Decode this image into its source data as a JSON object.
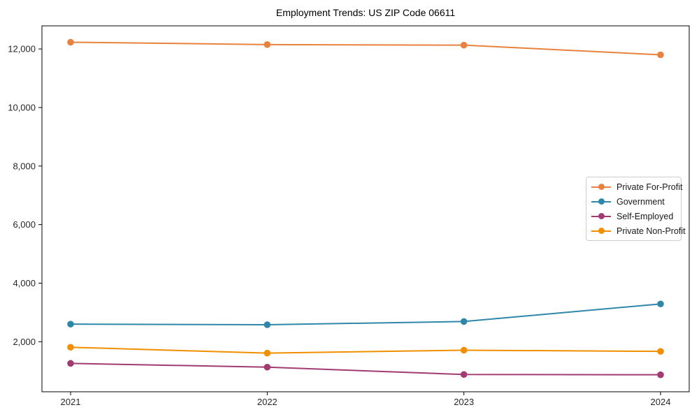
{
  "chart_data": {
    "type": "line",
    "title": "Employment Trends: US ZIP Code 06611",
    "categories": [
      "2021",
      "2022",
      "2023",
      "2024"
    ],
    "series": [
      {
        "name": "Private For-Profit",
        "color": "#E8823E",
        "values": [
          12230,
          12150,
          12130,
          11800
        ]
      },
      {
        "name": "Government",
        "color": "#2E87A9",
        "values": [
          2600,
          2580,
          2690,
          3290
        ]
      },
      {
        "name": "Self-Employed",
        "color": "#A23B72",
        "values": [
          1260,
          1130,
          880,
          870
        ]
      },
      {
        "name": "Private Non-Profit",
        "color": "#F18F01",
        "values": [
          1810,
          1610,
          1710,
          1670
        ]
      }
    ],
    "xlabel": "",
    "ylabel": "",
    "ylim": [
      290,
      12790
    ],
    "yticks": [
      2000,
      4000,
      6000,
      8000,
      10000,
      12000
    ],
    "ytick_labels": [
      "2,000",
      "4,000",
      "6,000",
      "8,000",
      "10,000",
      "12,000"
    ],
    "grid": false,
    "marker": "o",
    "legend_position": "center right",
    "frame": true,
    "axis_color": "#000000",
    "background_color": "#ffffff"
  }
}
